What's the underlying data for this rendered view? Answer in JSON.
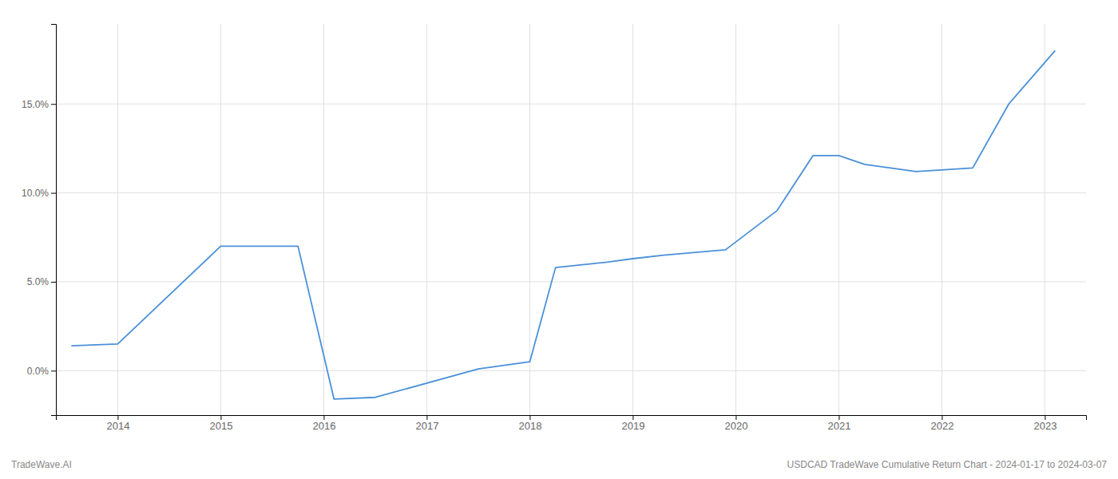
{
  "chart_data": {
    "type": "line",
    "x": [
      2013.55,
      2014.0,
      2015.0,
      2015.75,
      2016.1,
      2016.5,
      2017.5,
      2018.0,
      2018.25,
      2018.75,
      2019.0,
      2019.3,
      2019.9,
      2020.4,
      2020.75,
      2021.0,
      2021.25,
      2021.75,
      2022.3,
      2022.65,
      2023.1
    ],
    "values": [
      1.4,
      1.5,
      7.0,
      7.0,
      -1.6,
      -1.5,
      0.1,
      0.5,
      5.8,
      6.1,
      6.3,
      6.5,
      6.8,
      9.0,
      12.1,
      12.1,
      11.6,
      11.2,
      11.4,
      15.0,
      18.0
    ],
    "color": "#4a90d9",
    "xlim": [
      2013.4,
      2023.4
    ],
    "xticks": [
      2014,
      2015,
      2016,
      2017,
      2018,
      2019,
      2020,
      2021,
      2022,
      2023
    ],
    "ylim": [
      -2.5,
      19.5
    ],
    "yticks": [
      {
        "value": 0.0,
        "label": "0.0%"
      },
      {
        "value": 5.0,
        "label": "5.0%"
      },
      {
        "value": 10.0,
        "label": "10.0%"
      },
      {
        "value": 15.0,
        "label": "15.0%"
      }
    ],
    "grid": true,
    "annotations": [
      "TradeWave.AI",
      "USDCAD TradeWave Cumulative Return Chart - 2024-01-17 to 2024-03-07"
    ]
  }
}
